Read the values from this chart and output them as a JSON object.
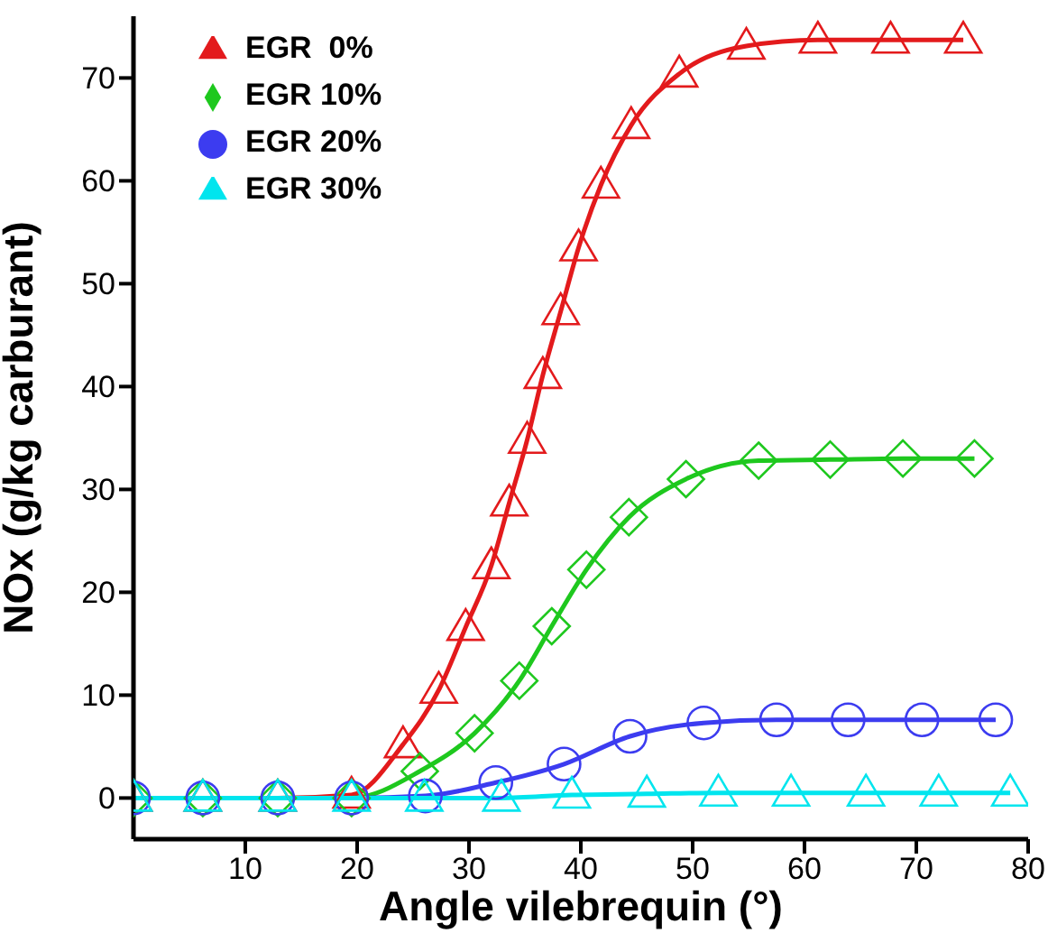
{
  "chart_data": {
    "type": "line",
    "xlabel": "Angle vilebrequin (°)",
    "ylabel": "NOx (g/kg carburant)",
    "xlim": [
      0,
      80
    ],
    "xticks": [
      10,
      20,
      30,
      40,
      50,
      60,
      70,
      80
    ],
    "ylim": [
      -4,
      76
    ],
    "yticks": [
      0,
      10,
      20,
      30,
      40,
      50,
      60,
      70
    ],
    "grid": false,
    "legend": "top left",
    "line_style": "solid",
    "series": [
      {
        "name": "EGR  0%",
        "color": "#e31a1c",
        "marker": "triangle",
        "x": [
          0,
          6.2,
          12.9,
          19.5,
          24.1,
          27.3,
          29.7,
          32.0,
          33.6,
          35.2,
          36.6,
          38.2,
          39.8,
          41.8,
          44.5,
          48.8,
          54.8,
          61.2,
          67.7,
          74.2
        ],
        "values": [
          0,
          0,
          0,
          0.3,
          5.2,
          10.5,
          16.6,
          22.6,
          28.7,
          34.8,
          41.1,
          47.3,
          53.5,
          59.6,
          65.4,
          70.4,
          73.1,
          73.7,
          73.7,
          73.7
        ]
      },
      {
        "name": "EGR 10%",
        "color": "#1ec81e",
        "marker": "diamond",
        "x": [
          0,
          6.2,
          12.9,
          19.5,
          25.6,
          30.5,
          34.5,
          37.4,
          40.5,
          44.3,
          49.4,
          55.9,
          62.3,
          68.8,
          75.2
        ],
        "values": [
          0,
          0,
          0,
          0,
          2.6,
          6.3,
          11.4,
          16.7,
          22.2,
          27.3,
          31.0,
          32.8,
          32.9,
          33.0,
          33.0
        ]
      },
      {
        "name": "EGR 20%",
        "color": "#3c3cf0",
        "marker": "circle",
        "x": [
          0,
          6.2,
          12.9,
          19.5,
          26.1,
          32.4,
          38.5,
          44.4,
          51.0,
          57.5,
          63.9,
          70.5,
          77.1
        ],
        "values": [
          0,
          0,
          0,
          0,
          0.2,
          1.5,
          3.3,
          6.0,
          7.3,
          7.6,
          7.6,
          7.6,
          7.6
        ]
      },
      {
        "name": "EGR 30%",
        "color": "#00e5ee",
        "marker": "triangle",
        "x": [
          0,
          6.2,
          12.9,
          19.5,
          26.0,
          32.9,
          39.2,
          45.9,
          52.3,
          58.8,
          65.5,
          72.0,
          78.4
        ],
        "values": [
          0,
          0,
          0,
          0,
          0,
          0,
          0.3,
          0.4,
          0.5,
          0.5,
          0.5,
          0.5,
          0.5
        ]
      }
    ]
  }
}
